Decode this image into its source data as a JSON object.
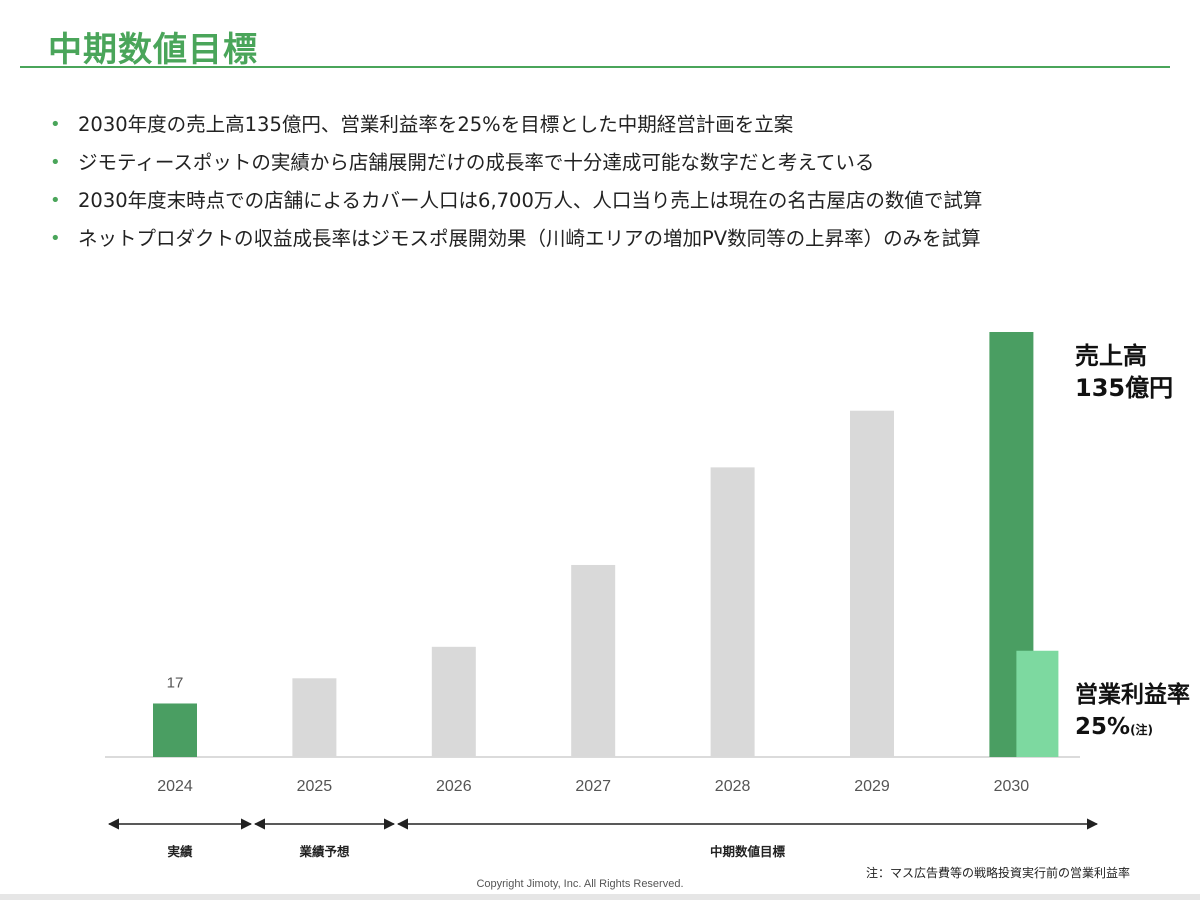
{
  "page": {
    "title": "中期数値目標",
    "bullets": [
      "2030年度の売上高135億円、営業利益率を25%を目標とした中期経営計画を立案",
      "ジモティースポットの実績から店舗展開だけの成長率で十分達成可能な数字だと考えている",
      "2030年度末時点での店舗によるカバー人口は6,700万人、人口当り売上は現在の名古屋店の数値で試算",
      "ネットプロダクトの収益成長率はジモスポ展開効果（川崎エリアの増加PV数同等の上昇率）のみを試算"
    ],
    "footnote": "注：マス広告費等の戦略投資実行前の営業利益率",
    "copyright": "Copyright Jimoty, Inc. All Rights Reserved."
  },
  "colors": {
    "accent": "#4aa55a",
    "bar_actual": "#4a9e62",
    "bar_plan": "#d9d9d9",
    "bar_margin": "#7dd9a0"
  },
  "chart_data": {
    "type": "bar",
    "categories": [
      "2024",
      "2025",
      "2026",
      "2027",
      "2028",
      "2029",
      "2030"
    ],
    "series": [
      {
        "values": [
          17,
          25,
          35,
          61,
          92,
          110,
          135
        ]
      },
      {
        "values": [
          null,
          null,
          null,
          null,
          null,
          null,
          33.75
        ]
      }
    ],
    "data_labels": [
      "17",
      "",
      "",
      "",
      "",
      "",
      ""
    ],
    "ylim": [
      0,
      135
    ],
    "annotations": [
      {
        "lines": [
          "売上高",
          "135億円"
        ]
      },
      {
        "lines": [
          "営業利益率",
          "25%"
        ],
        "suffix": "(注)"
      }
    ],
    "periods": [
      {
        "label": "実績",
        "from": "2024",
        "to": "2024"
      },
      {
        "label": "業績予想",
        "from": "2025",
        "to": "2025"
      },
      {
        "label": "中期数値目標",
        "from": "2026",
        "to": "2030"
      }
    ]
  }
}
